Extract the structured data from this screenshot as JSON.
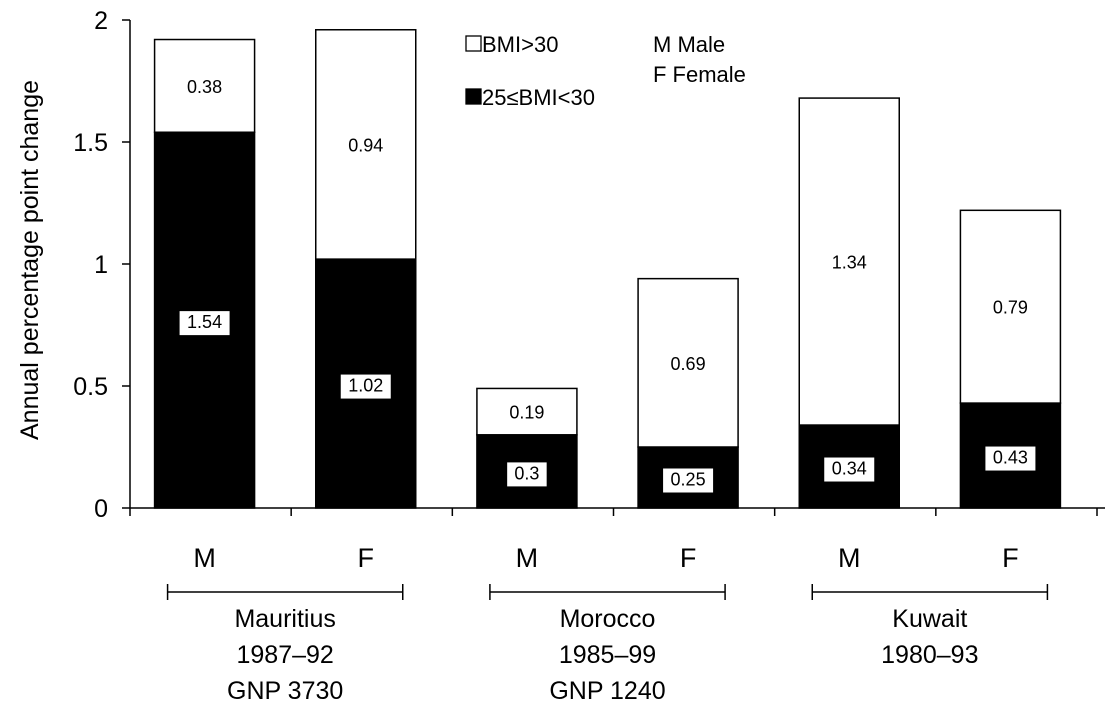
{
  "chart_data": {
    "type": "bar",
    "stacked": true,
    "title": "",
    "xlabel": "",
    "ylabel": "Annual percentage point change",
    "ylim": [
      0,
      2
    ],
    "yticks": [
      "0",
      "0.5",
      "1",
      "1.5",
      "2"
    ],
    "ytick_values": [
      0,
      0.5,
      1,
      1.5,
      2
    ],
    "categories": [
      "M",
      "F",
      "M",
      "F",
      "M",
      "F"
    ],
    "series": [
      {
        "name": "25≤BMI<30",
        "color": "#000000",
        "values": [
          1.54,
          1.02,
          0.3,
          0.25,
          0.34,
          0.43
        ]
      },
      {
        "name": "BMI>30",
        "color": "#ffffff",
        "values": [
          0.38,
          0.94,
          0.19,
          0.69,
          1.34,
          0.79
        ]
      }
    ],
    "data_labels": {
      "overweight": [
        "1.54",
        "1.02",
        "0.3",
        "0.25",
        "0.34",
        "0.43"
      ],
      "obese": [
        "0.38",
        "0.94",
        "0.19",
        "0.69",
        "1.34",
        "0.79"
      ]
    },
    "groups": [
      {
        "lines": [
          "Mauritius",
          "1987–92",
          "GNP 3730"
        ]
      },
      {
        "lines": [
          "Morocco",
          "1985–99",
          "GNP 1240"
        ]
      },
      {
        "lines": [
          "Kuwait",
          "1980–93"
        ]
      }
    ],
    "legend": {
      "obese_label": "BMI>30",
      "overweight_label": "25≤BMI<30",
      "male_key": "M Male",
      "female_key": "F Female",
      "position": "top-center"
    },
    "grid": false
  }
}
